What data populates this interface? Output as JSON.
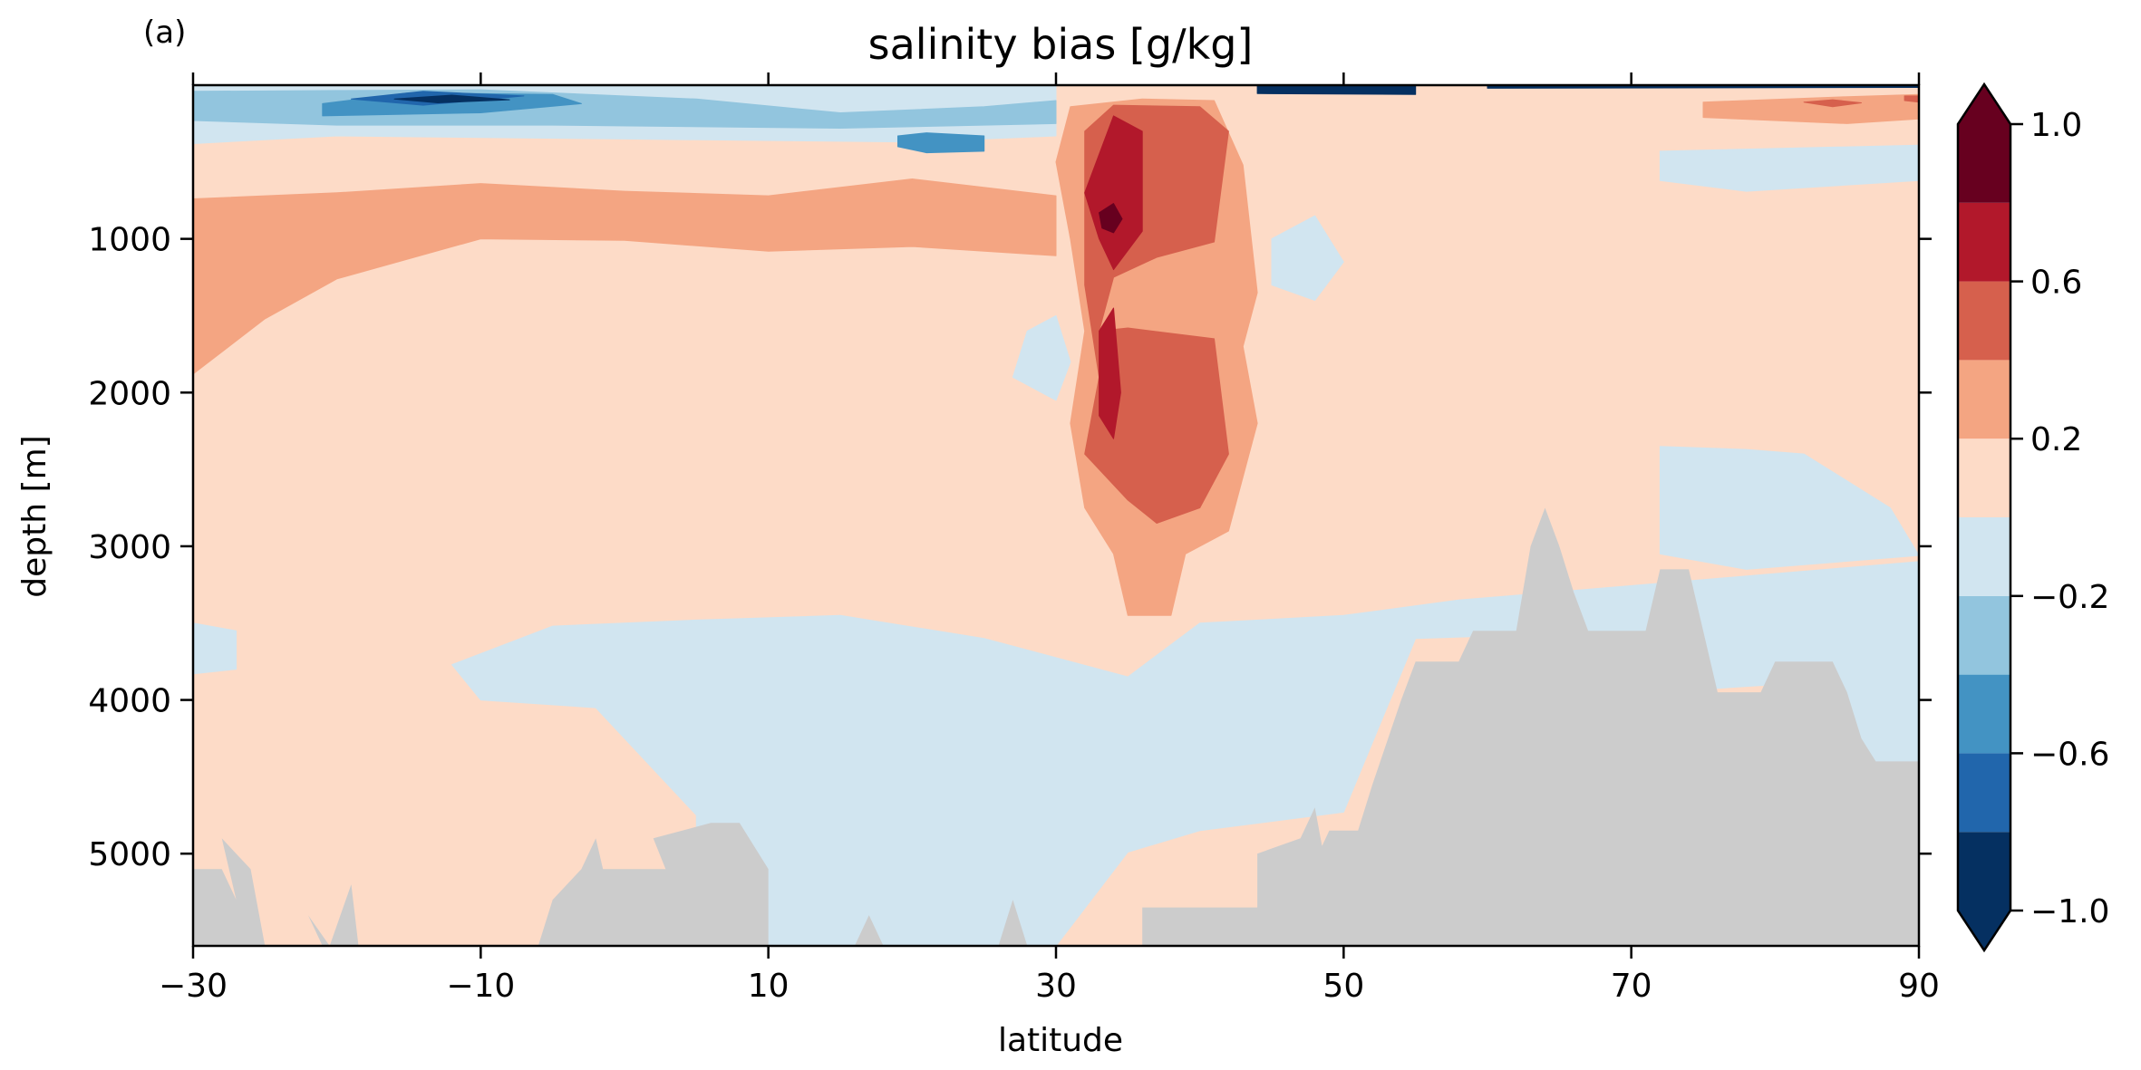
{
  "panel_label": "(a)",
  "chart_data": {
    "type": "heatmap",
    "title": "salinity bias [g/kg]",
    "xlabel": "latitude",
    "ylabel": "depth [m]",
    "xlim": [
      -30,
      90
    ],
    "ylim": [
      5600,
      0
    ],
    "y_inverted": true,
    "x_ticks": [
      -30,
      -10,
      10,
      30,
      50,
      70,
      90
    ],
    "x_tick_labels": [
      "−30",
      "−10",
      "10",
      "30",
      "50",
      "70",
      "90"
    ],
    "y_ticks": [
      1000,
      2000,
      3000,
      4000,
      5000
    ],
    "y_tick_labels": [
      "1000",
      "2000",
      "3000",
      "4000",
      "5000"
    ],
    "grid": false,
    "colormap": "RdBu_r",
    "colorbar": {
      "levels": [
        -1.0,
        -0.8,
        -0.6,
        -0.4,
        -0.2,
        0.0,
        0.2,
        0.4,
        0.6,
        0.8,
        1.0
      ],
      "extend": "both",
      "tick_values": [
        -1.0,
        -0.6,
        -0.2,
        0.2,
        0.6,
        1.0
      ],
      "tick_labels": [
        "−1.0",
        "−0.6",
        "−0.2",
        "0.2",
        "0.6",
        "1.0"
      ],
      "colors": [
        "#053061",
        "#2166ac",
        "#4393c3",
        "#92c5de",
        "#d1e5f0",
        "#fddbc7",
        "#f4a582",
        "#d6604d",
        "#b2182b",
        "#67001f"
      ],
      "under_color": "#053061",
      "over_color": "#67001f"
    },
    "land_color": "#cccccc",
    "background_value": 0.1,
    "regions": [
      {
        "value": 0.3,
        "points": [
          [
            -30,
            740
          ],
          [
            -20,
            700
          ],
          [
            -10,
            640
          ],
          [
            0,
            690
          ],
          [
            10,
            720
          ],
          [
            20,
            610
          ],
          [
            30,
            720
          ],
          [
            30,
            1110
          ],
          [
            20,
            1050
          ],
          [
            10,
            1080
          ],
          [
            0,
            1010
          ],
          [
            -10,
            1000
          ],
          [
            -20,
            1260
          ],
          [
            -25,
            1520
          ],
          [
            -30,
            1880
          ]
        ]
      },
      {
        "value": -0.1,
        "points": [
          [
            -30,
            0
          ],
          [
            30,
            0
          ],
          [
            30,
            330
          ],
          [
            20,
            370
          ],
          [
            0,
            350
          ],
          [
            -20,
            330
          ],
          [
            -30,
            380
          ]
        ]
      },
      {
        "value": -0.3,
        "points": [
          [
            -30,
            40
          ],
          [
            -20,
            35
          ],
          [
            -10,
            30
          ],
          [
            5,
            90
          ],
          [
            15,
            180
          ],
          [
            25,
            140
          ],
          [
            30,
            100
          ],
          [
            30,
            250
          ],
          [
            15,
            280
          ],
          [
            -5,
            260
          ],
          [
            -20,
            260
          ],
          [
            -30,
            230
          ]
        ]
      },
      {
        "value": -0.5,
        "points": [
          [
            -21,
            120
          ],
          [
            -15,
            50
          ],
          [
            -5,
            60
          ],
          [
            -3,
            120
          ],
          [
            -10,
            180
          ],
          [
            -21,
            200
          ]
        ]
      },
      {
        "value": -0.7,
        "points": [
          [
            -19,
            90
          ],
          [
            -14,
            40
          ],
          [
            -7,
            70
          ],
          [
            -14,
            130
          ]
        ]
      },
      {
        "value": -0.9,
        "points": [
          [
            -16,
            90
          ],
          [
            -12,
            65
          ],
          [
            -8,
            95
          ],
          [
            -13,
            115
          ]
        ]
      },
      {
        "value": -0.5,
        "points": [
          [
            19,
            330
          ],
          [
            21,
            310
          ],
          [
            25,
            330
          ],
          [
            25,
            430
          ],
          [
            21,
            440
          ],
          [
            19,
            400
          ]
        ]
      },
      {
        "value": -0.1,
        "points": [
          [
            -12,
            3770
          ],
          [
            -5,
            3520
          ],
          [
            5,
            3480
          ],
          [
            15,
            3450
          ],
          [
            25,
            3600
          ],
          [
            35,
            3850
          ],
          [
            40,
            3500
          ],
          [
            50,
            3450
          ],
          [
            58,
            3350
          ],
          [
            90,
            3100
          ],
          [
            90,
            4400
          ],
          [
            85,
            4400
          ],
          [
            80,
            3900
          ],
          [
            75,
            3930
          ],
          [
            65,
            3570
          ],
          [
            55,
            3600
          ],
          [
            50,
            4730
          ],
          [
            40,
            4850
          ],
          [
            35,
            4990
          ],
          [
            30,
            5600
          ],
          [
            5,
            5600
          ],
          [
            5,
            4750
          ],
          [
            -2,
            4050
          ],
          [
            -10,
            4000
          ]
        ]
      },
      {
        "value": -0.1,
        "points": [
          [
            72,
            430
          ],
          [
            90,
            390
          ],
          [
            90,
            620
          ],
          [
            78,
            690
          ],
          [
            72,
            620
          ]
        ]
      },
      {
        "value": -0.1,
        "points": [
          [
            72,
            2350
          ],
          [
            78,
            2370
          ],
          [
            82,
            2400
          ],
          [
            88,
            2750
          ],
          [
            90,
            3060
          ],
          [
            78,
            3150
          ],
          [
            72,
            3050
          ]
        ]
      },
      {
        "value": -0.1,
        "points": [
          [
            45,
            1000
          ],
          [
            48,
            850
          ],
          [
            50,
            1150
          ],
          [
            48,
            1400
          ],
          [
            45,
            1300
          ]
        ]
      },
      {
        "value": -0.1,
        "points": [
          [
            28,
            1600
          ],
          [
            30,
            1500
          ],
          [
            31,
            1800
          ],
          [
            30,
            2050
          ],
          [
            27,
            1900
          ]
        ]
      },
      {
        "value": -0.1,
        "points": [
          [
            -30,
            3500
          ],
          [
            -27,
            3550
          ],
          [
            -27,
            3800
          ],
          [
            -30,
            3830
          ]
        ]
      },
      {
        "value": 0.3,
        "points": [
          [
            31,
            140
          ],
          [
            36,
            90
          ],
          [
            41,
            100
          ],
          [
            43,
            520
          ],
          [
            44,
            1350
          ],
          [
            43,
            1700
          ],
          [
            44,
            2200
          ],
          [
            42,
            2900
          ],
          [
            39,
            3050
          ],
          [
            38,
            3450
          ],
          [
            35,
            3450
          ],
          [
            34,
            3050
          ],
          [
            32,
            2750
          ],
          [
            31,
            2200
          ],
          [
            32,
            1600
          ],
          [
            31,
            1000
          ],
          [
            30,
            500
          ]
        ]
      },
      {
        "value": 0.5,
        "points": [
          [
            32,
            300
          ],
          [
            34,
            130
          ],
          [
            40,
            140
          ],
          [
            42,
            300
          ],
          [
            41,
            1020
          ],
          [
            37,
            1120
          ],
          [
            34,
            1250
          ],
          [
            33,
            1600
          ],
          [
            35,
            1580
          ],
          [
            41,
            1650
          ],
          [
            42,
            2400
          ],
          [
            40,
            2750
          ],
          [
            37,
            2850
          ],
          [
            35,
            2700
          ],
          [
            32,
            2400
          ],
          [
            33,
            1900
          ],
          [
            32,
            1300
          ]
        ]
      },
      {
        "value": 0.7,
        "points": [
          [
            33,
            450
          ],
          [
            34,
            200
          ],
          [
            36,
            300
          ],
          [
            36,
            950
          ],
          [
            34,
            1200
          ],
          [
            33,
            1000
          ],
          [
            32,
            700
          ]
        ]
      },
      {
        "value": 0.7,
        "points": [
          [
            33,
            1600
          ],
          [
            34,
            1450
          ],
          [
            34.5,
            2000
          ],
          [
            34,
            2300
          ],
          [
            33,
            2150
          ]
        ]
      },
      {
        "value": 0.9,
        "points": [
          [
            33,
            830
          ],
          [
            34,
            770
          ],
          [
            34.6,
            870
          ],
          [
            34,
            960
          ],
          [
            33.2,
            930
          ]
        ]
      },
      {
        "value": 0.3,
        "points": [
          [
            75,
            110
          ],
          [
            85,
            75
          ],
          [
            90,
            60
          ],
          [
            90,
            220
          ],
          [
            85,
            250
          ],
          [
            75,
            210
          ]
        ]
      },
      {
        "value": 0.5,
        "points": [
          [
            82,
            110
          ],
          [
            84,
            95
          ],
          [
            86,
            115
          ],
          [
            84,
            140
          ]
        ]
      },
      {
        "value": 0.5,
        "points": [
          [
            89,
            70
          ],
          [
            90,
            70
          ],
          [
            90,
            110
          ],
          [
            89,
            100
          ]
        ]
      },
      {
        "value": -0.9,
        "points": [
          [
            44,
            0
          ],
          [
            55,
            0
          ],
          [
            55,
            60
          ],
          [
            44,
            55
          ]
        ]
      },
      {
        "value": -0.9,
        "points": [
          [
            60,
            0
          ],
          [
            90,
            0
          ],
          [
            90,
            15
          ],
          [
            60,
            20
          ]
        ]
      }
    ],
    "land": [
      [
        -30,
        5100
      ],
      [
        -28,
        5100
      ],
      [
        -27,
        5300
      ],
      [
        -28,
        4900
      ],
      [
        -26,
        5100
      ],
      [
        -25,
        5600
      ],
      [
        -26.5,
        5600
      ],
      [
        -21,
        5600
      ],
      [
        -22,
        5400
      ],
      [
        -20.5,
        5600
      ],
      [
        -19,
        5200
      ],
      [
        -18.5,
        5600
      ],
      [
        -6,
        5600
      ],
      [
        -5,
        5300
      ],
      [
        -3,
        5100
      ],
      [
        -2,
        4900
      ],
      [
        -1.5,
        5100
      ],
      [
        4,
        5100
      ],
      [
        5,
        5600
      ],
      [
        2,
        4900
      ],
      [
        6,
        4800
      ],
      [
        8,
        4800
      ],
      [
        10,
        5100
      ],
      [
        10,
        5600
      ],
      [
        16,
        5600
      ],
      [
        17,
        5400
      ],
      [
        18,
        5600
      ],
      [
        26,
        5600
      ],
      [
        27,
        5300
      ],
      [
        28,
        5600
      ],
      [
        36,
        5600
      ],
      [
        36,
        5350
      ],
      [
        44,
        5350
      ],
      [
        44,
        5000
      ],
      [
        47,
        4900
      ],
      [
        48,
        4700
      ],
      [
        48.5,
        4950
      ],
      [
        49,
        4850
      ],
      [
        51,
        4850
      ],
      [
        52,
        4550
      ],
      [
        54,
        4000
      ],
      [
        55,
        3750
      ],
      [
        58,
        3750
      ],
      [
        59,
        3550
      ],
      [
        62,
        3550
      ],
      [
        63,
        3000
      ],
      [
        64,
        2750
      ],
      [
        65,
        3000
      ],
      [
        66,
        3300
      ],
      [
        67,
        3550
      ],
      [
        71,
        3550
      ],
      [
        72,
        3150
      ],
      [
        74,
        3150
      ],
      [
        75,
        3550
      ],
      [
        76,
        3950
      ],
      [
        79,
        3950
      ],
      [
        80,
        3750
      ],
      [
        84,
        3750
      ],
      [
        85,
        3950
      ],
      [
        86,
        4250
      ],
      [
        87,
        4400
      ],
      [
        90,
        4400
      ],
      [
        90,
        5600
      ],
      [
        -30,
        5600
      ]
    ]
  }
}
